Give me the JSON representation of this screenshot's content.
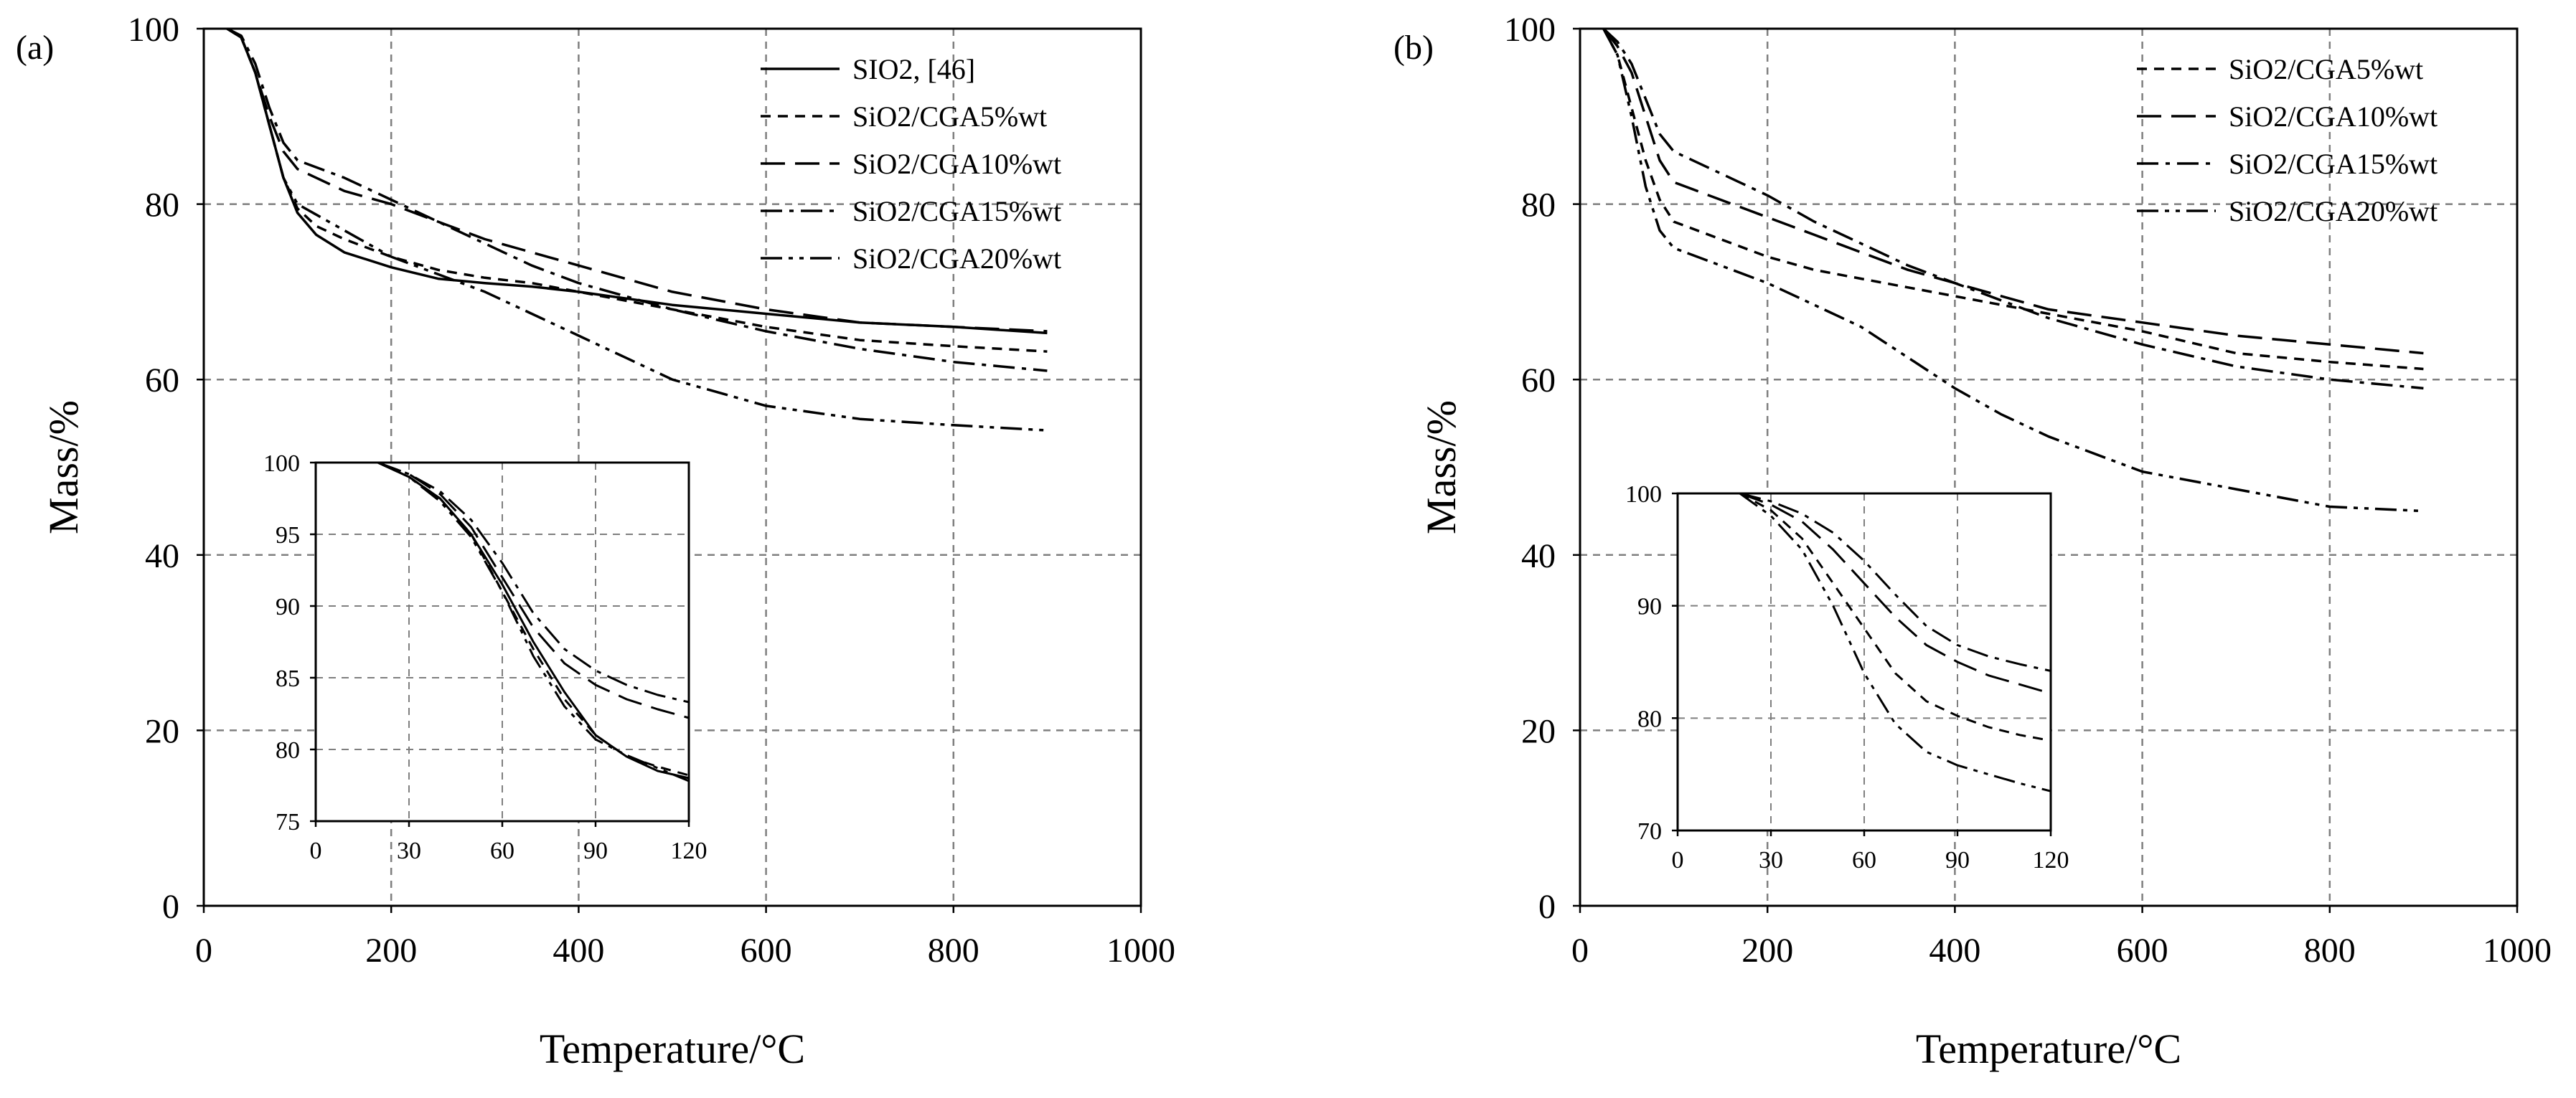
{
  "figure": {
    "panel_a_label": "(a)",
    "panel_b_label": "(b)"
  },
  "chart_data": [
    {
      "type": "line",
      "panel": "(a)",
      "xlabel": "Temperature/°C",
      "ylabel": "Mass/%",
      "xlim": [
        0,
        1000
      ],
      "ylim": [
        0,
        100
      ],
      "xticks": [
        "0",
        "200",
        "400",
        "600",
        "800",
        "1000"
      ],
      "yticks": [
        "0",
        "20",
        "40",
        "60",
        "80",
        "100"
      ],
      "grid": true,
      "legend": "top-right",
      "series": [
        {
          "name": "SIO2, [46]",
          "dash": "solid",
          "x": [
            25,
            40,
            55,
            70,
            85,
            100,
            120,
            150,
            200,
            250,
            300,
            350,
            400,
            500,
            600,
            700,
            800,
            900
          ],
          "y": [
            100,
            99,
            95,
            89,
            83,
            79,
            76.5,
            74.5,
            72.8,
            71.5,
            71,
            70.6,
            70,
            68.5,
            67.5,
            66.5,
            66,
            65.3
          ]
        },
        {
          "name": "SiO2/CGA5%wt",
          "dash": "short",
          "x": [
            25,
            40,
            55,
            70,
            85,
            100,
            120,
            150,
            200,
            250,
            300,
            350,
            400,
            500,
            600,
            700,
            800,
            900
          ],
          "y": [
            100,
            99,
            95,
            89,
            83,
            79.5,
            77.5,
            76,
            74,
            72.5,
            71.6,
            71,
            70,
            68,
            66,
            64.5,
            63.8,
            63.2
          ]
        },
        {
          "name": "SiO2/CGA10%wt",
          "dash": "long",
          "x": [
            25,
            40,
            55,
            70,
            85,
            100,
            150,
            200,
            250,
            300,
            350,
            400,
            500,
            600,
            700,
            800,
            900
          ],
          "y": [
            100,
            99,
            95,
            90,
            86,
            84,
            81.5,
            80,
            78,
            76,
            74.5,
            73,
            70,
            68,
            66.5,
            66,
            65.5
          ]
        },
        {
          "name": "SiO2/CGA15%wt",
          "dash": "dashdot",
          "x": [
            25,
            40,
            55,
            70,
            85,
            100,
            150,
            200,
            250,
            300,
            350,
            400,
            500,
            600,
            700,
            800,
            900
          ],
          "y": [
            100,
            99.2,
            96,
            91,
            87,
            85,
            83,
            80.5,
            78,
            75.5,
            73,
            71,
            68,
            65.5,
            63.5,
            62,
            61
          ]
        },
        {
          "name": "SiO2/CGA20%wt",
          "dash": "dashdotdot",
          "x": [
            25,
            40,
            55,
            70,
            85,
            100,
            150,
            200,
            250,
            300,
            350,
            400,
            450,
            500,
            600,
            700,
            800,
            900
          ],
          "y": [
            100,
            99,
            95,
            89,
            83,
            80,
            77,
            74,
            72,
            70,
            67.5,
            65,
            62.5,
            60,
            57,
            55.5,
            54.8,
            54.2
          ]
        }
      ],
      "inset": {
        "xlim": [
          0,
          120
        ],
        "ylim": [
          75,
          100
        ],
        "xticks": [
          "0",
          "30",
          "60",
          "90",
          "120"
        ],
        "yticks": [
          "75",
          "80",
          "85",
          "90",
          "95",
          "100"
        ],
        "series": [
          {
            "name": "SIO2, [46]",
            "x": [
              20,
              30,
              40,
              50,
              60,
              70,
              80,
              90,
              100,
              110,
              120
            ],
            "y": [
              100,
              99,
              97.5,
              95,
              91.5,
              87.5,
              84,
              81,
              79.5,
              78.5,
              78
            ]
          },
          {
            "name": "SiO2/CGA5%wt",
            "x": [
              20,
              30,
              40,
              50,
              60,
              70,
              80,
              90,
              100,
              110,
              120
            ],
            "y": [
              100,
              99,
              97.5,
              95,
              91,
              87,
              83.5,
              81,
              79.5,
              78.8,
              78.2
            ]
          },
          {
            "name": "SiO2/CGA10%wt",
            "x": [
              20,
              30,
              40,
              50,
              60,
              70,
              80,
              90,
              100,
              110,
              120
            ],
            "y": [
              100,
              99.2,
              97.8,
              95.5,
              92,
              88.5,
              86,
              84.5,
              83.5,
              82.8,
              82.2
            ]
          },
          {
            "name": "SiO2/CGA15%wt",
            "x": [
              20,
              30,
              40,
              50,
              60,
              70,
              80,
              90,
              100,
              110,
              120
            ],
            "y": [
              100,
              99.2,
              98,
              96,
              93,
              89.5,
              87,
              85.5,
              84.5,
              83.8,
              83.3
            ]
          },
          {
            "name": "SiO2/CGA20%wt",
            "x": [
              20,
              30,
              40,
              50,
              60,
              70,
              80,
              90,
              100,
              110,
              120
            ],
            "y": [
              100,
              99,
              97.3,
              94.8,
              91,
              86.5,
              83,
              80.7,
              79.6,
              78.7,
              77.8
            ]
          }
        ]
      }
    },
    {
      "type": "line",
      "panel": "(b)",
      "xlabel": "Temperature/°C",
      "ylabel": "Mass/%",
      "xlim": [
        0,
        1000
      ],
      "ylim": [
        0,
        100
      ],
      "xticks": [
        "0",
        "200",
        "400",
        "600",
        "800",
        "1000"
      ],
      "yticks": [
        "0",
        "20",
        "40",
        "60",
        "80",
        "100"
      ],
      "grid": true,
      "legend": "top-right",
      "series": [
        {
          "name": "SiO2/CGA5%wt",
          "dash": "short",
          "x": [
            25,
            40,
            55,
            70,
            85,
            100,
            150,
            200,
            250,
            300,
            350,
            400,
            500,
            600,
            700,
            800,
            900
          ],
          "y": [
            100,
            97,
            91,
            85,
            80.5,
            78,
            76,
            74,
            72.5,
            71.5,
            70.5,
            69.5,
            67.5,
            65.5,
            63,
            62,
            61.2
          ]
        },
        {
          "name": "SiO2/CGA10%wt",
          "dash": "long",
          "x": [
            25,
            40,
            55,
            70,
            85,
            100,
            150,
            200,
            250,
            300,
            350,
            400,
            500,
            600,
            700,
            800,
            900
          ],
          "y": [
            100,
            98,
            95,
            90,
            85,
            82.5,
            80.5,
            78.5,
            76.5,
            74.5,
            72.5,
            71,
            68,
            66.5,
            65,
            64,
            63
          ]
        },
        {
          "name": "SiO2/CGA15%wt",
          "dash": "dashdot",
          "x": [
            25,
            40,
            55,
            70,
            85,
            100,
            150,
            200,
            250,
            300,
            350,
            400,
            500,
            600,
            700,
            800,
            900
          ],
          "y": [
            100,
            98.5,
            96,
            92,
            88,
            86,
            83.5,
            81,
            78,
            75.5,
            73,
            71,
            67,
            64,
            61.5,
            60,
            59
          ]
        },
        {
          "name": "SiO2/CGA20%wt",
          "dash": "dashdotdot",
          "x": [
            25,
            40,
            55,
            70,
            85,
            100,
            150,
            200,
            250,
            300,
            350,
            400,
            450,
            500,
            600,
            700,
            800,
            900
          ],
          "y": [
            100,
            97,
            90,
            82,
            77,
            75,
            73,
            71,
            68.5,
            66,
            62.5,
            59,
            56,
            53.5,
            49.5,
            47.5,
            45.5,
            45
          ]
        }
      ],
      "inset": {
        "xlim": [
          0,
          120
        ],
        "ylim": [
          70,
          100
        ],
        "xticks": [
          "0",
          "30",
          "60",
          "90",
          "120"
        ],
        "yticks": [
          "70",
          "80",
          "90",
          "100"
        ],
        "series": [
          {
            "name": "SiO2/CGA5%wt",
            "x": [
              20,
              30,
              40,
              50,
              60,
              70,
              80,
              90,
              100,
              110,
              120
            ],
            "y": [
              100,
              98.5,
              96,
              92,
              88,
              84,
              81.5,
              80.2,
              79.2,
              78.5,
              78
            ]
          },
          {
            "name": "SiO2/CGA10%wt",
            "x": [
              20,
              30,
              40,
              50,
              60,
              70,
              80,
              90,
              100,
              110,
              120
            ],
            "y": [
              100,
              99,
              97.5,
              95,
              92,
              89,
              86.5,
              85,
              83.8,
              83,
              82.2
            ]
          },
          {
            "name": "SiO2/CGA15%wt",
            "x": [
              20,
              30,
              40,
              50,
              60,
              70,
              80,
              90,
              100,
              110,
              120
            ],
            "y": [
              100,
              99.3,
              98.2,
              96.5,
              94,
              91,
              88.2,
              86.5,
              85.5,
              84.8,
              84.2
            ]
          },
          {
            "name": "SiO2/CGA20%wt",
            "x": [
              20,
              30,
              40,
              50,
              60,
              70,
              80,
              90,
              100,
              110,
              120
            ],
            "y": [
              100,
              98,
              95,
              90,
              84,
              79.5,
              77,
              75.8,
              75,
              74.2,
              73.5
            ]
          }
        ]
      }
    }
  ]
}
